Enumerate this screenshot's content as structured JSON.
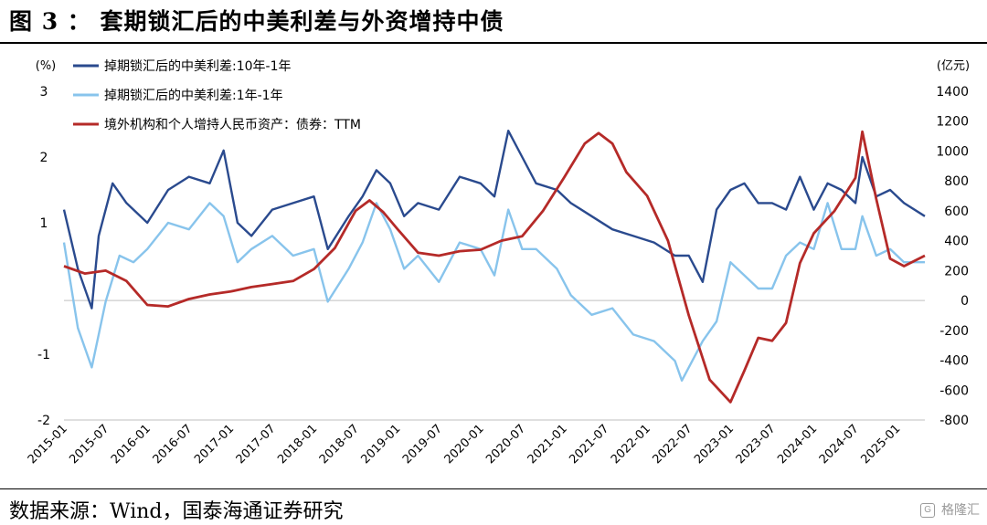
{
  "figure": {
    "title": "图 3 ： 套期锁汇后的中美利差与外资增持中债",
    "source": "数据来源：Wind，国泰海通证券研究",
    "watermark": "格隆汇"
  },
  "chart_data": {
    "type": "line",
    "title": "",
    "left_axis": {
      "unit": "(%)",
      "ylim": [
        -2,
        3
      ],
      "ticks": [
        -2,
        -1,
        1,
        2,
        3
      ]
    },
    "right_axis": {
      "unit": "(亿元)",
      "ylim": [
        -800,
        1400
      ],
      "ticks": [
        -800,
        -600,
        -400,
        -200,
        0,
        200,
        400,
        600,
        800,
        1000,
        1200,
        1400
      ]
    },
    "x_axis": {
      "ticks": [
        "2015-01",
        "2015-07",
        "2016-01",
        "2016-07",
        "2017-01",
        "2017-07",
        "2018-01",
        "2018-07",
        "2019-01",
        "2019-07",
        "2020-01",
        "2020-07",
        "2021-01",
        "2021-07",
        "2022-01",
        "2022-07",
        "2023-01",
        "2023-07",
        "2024-01",
        "2024-07",
        "2025-01"
      ],
      "range": [
        "2015-01",
        "2025-05"
      ]
    },
    "legend_position": "top-left",
    "series": [
      {
        "name": "掉期锁汇后的中美利差:10年-1年",
        "axis": "left",
        "color": "#2a4a8e",
        "x": [
          "2015-01",
          "2015-03",
          "2015-05",
          "2015-06",
          "2015-08",
          "2015-10",
          "2016-01",
          "2016-04",
          "2016-07",
          "2016-10",
          "2016-12",
          "2017-02",
          "2017-04",
          "2017-07",
          "2017-10",
          "2018-01",
          "2018-03",
          "2018-06",
          "2018-08",
          "2018-10",
          "2018-12",
          "2019-02",
          "2019-04",
          "2019-07",
          "2019-10",
          "2020-01",
          "2020-03",
          "2020-05",
          "2020-07",
          "2020-09",
          "2020-12",
          "2021-02",
          "2021-05",
          "2021-08",
          "2021-11",
          "2022-02",
          "2022-05",
          "2022-07",
          "2022-09",
          "2022-11",
          "2023-01",
          "2023-03",
          "2023-05",
          "2023-07",
          "2023-09",
          "2023-11",
          "2024-01",
          "2024-03",
          "2024-05",
          "2024-07",
          "2024-08",
          "2024-10",
          "2024-12",
          "2025-02",
          "2025-05"
        ],
        "y": [
          1.2,
          0.3,
          -0.3,
          0.8,
          1.6,
          1.3,
          1.0,
          1.5,
          1.7,
          1.6,
          2.1,
          1.0,
          0.8,
          1.2,
          1.3,
          1.4,
          0.6,
          1.1,
          1.4,
          1.8,
          1.6,
          1.1,
          1.3,
          1.2,
          1.7,
          1.6,
          1.4,
          2.4,
          2.0,
          1.6,
          1.5,
          1.3,
          1.1,
          0.9,
          0.8,
          0.7,
          0.5,
          0.5,
          0.1,
          1.2,
          1.5,
          1.6,
          1.3,
          1.3,
          1.2,
          1.7,
          1.2,
          1.6,
          1.5,
          1.3,
          2.0,
          1.4,
          1.5,
          1.3,
          1.1
        ]
      },
      {
        "name": "掉期锁汇后的中美利差:1年-1年",
        "axis": "left",
        "color": "#88c4ec",
        "x": [
          "2015-01",
          "2015-03",
          "2015-05",
          "2015-07",
          "2015-09",
          "2015-11",
          "2016-01",
          "2016-04",
          "2016-07",
          "2016-10",
          "2016-12",
          "2017-02",
          "2017-04",
          "2017-07",
          "2017-10",
          "2018-01",
          "2018-03",
          "2018-06",
          "2018-08",
          "2018-10",
          "2018-12",
          "2019-02",
          "2019-04",
          "2019-07",
          "2019-10",
          "2020-01",
          "2020-03",
          "2020-05",
          "2020-07",
          "2020-09",
          "2020-12",
          "2021-02",
          "2021-05",
          "2021-08",
          "2021-11",
          "2022-02",
          "2022-05",
          "2022-06",
          "2022-09",
          "2022-11",
          "2023-01",
          "2023-03",
          "2023-05",
          "2023-07",
          "2023-09",
          "2023-11",
          "2024-01",
          "2024-03",
          "2024-05",
          "2024-07",
          "2024-08",
          "2024-10",
          "2024-12",
          "2025-02",
          "2025-05"
        ],
        "y": [
          0.7,
          -0.6,
          -1.2,
          -0.2,
          0.5,
          0.4,
          0.6,
          1.0,
          0.9,
          1.3,
          1.1,
          0.4,
          0.6,
          0.8,
          0.5,
          0.6,
          -0.2,
          0.3,
          0.7,
          1.3,
          0.9,
          0.3,
          0.5,
          0.1,
          0.7,
          0.6,
          0.2,
          1.2,
          0.6,
          0.6,
          0.3,
          -0.1,
          -0.4,
          -0.3,
          -0.7,
          -0.8,
          -1.1,
          -1.4,
          -0.8,
          -0.5,
          0.4,
          0.2,
          0.0,
          0.0,
          0.5,
          0.7,
          0.6,
          1.3,
          0.6,
          0.6,
          1.1,
          0.5,
          0.6,
          0.4,
          0.4
        ]
      },
      {
        "name": "境外机构和个人增持人民币资产：债券：TTM",
        "axis": "right",
        "color": "#b52a28",
        "x": [
          "2015-01",
          "2015-04",
          "2015-07",
          "2015-10",
          "2016-01",
          "2016-04",
          "2016-07",
          "2016-10",
          "2017-01",
          "2017-04",
          "2017-07",
          "2017-10",
          "2018-01",
          "2018-04",
          "2018-07",
          "2018-09",
          "2018-11",
          "2019-01",
          "2019-04",
          "2019-07",
          "2019-10",
          "2020-01",
          "2020-04",
          "2020-07",
          "2020-10",
          "2021-01",
          "2021-04",
          "2021-06",
          "2021-08",
          "2021-10",
          "2022-01",
          "2022-04",
          "2022-07",
          "2022-10",
          "2023-01",
          "2023-03",
          "2023-05",
          "2023-07",
          "2023-09",
          "2023-11",
          "2024-01",
          "2024-04",
          "2024-07",
          "2024-08",
          "2024-10",
          "2024-12",
          "2025-02",
          "2025-05"
        ],
        "y": [
          230,
          180,
          200,
          130,
          -30,
          -40,
          10,
          40,
          60,
          90,
          110,
          130,
          210,
          350,
          600,
          670,
          590,
          480,
          320,
          300,
          330,
          340,
          400,
          430,
          600,
          820,
          1050,
          1120,
          1050,
          860,
          700,
          400,
          -100,
          -530,
          -680,
          -470,
          -250,
          -270,
          -150,
          250,
          450,
          600,
          820,
          1130,
          680,
          280,
          230,
          300
        ]
      }
    ]
  }
}
